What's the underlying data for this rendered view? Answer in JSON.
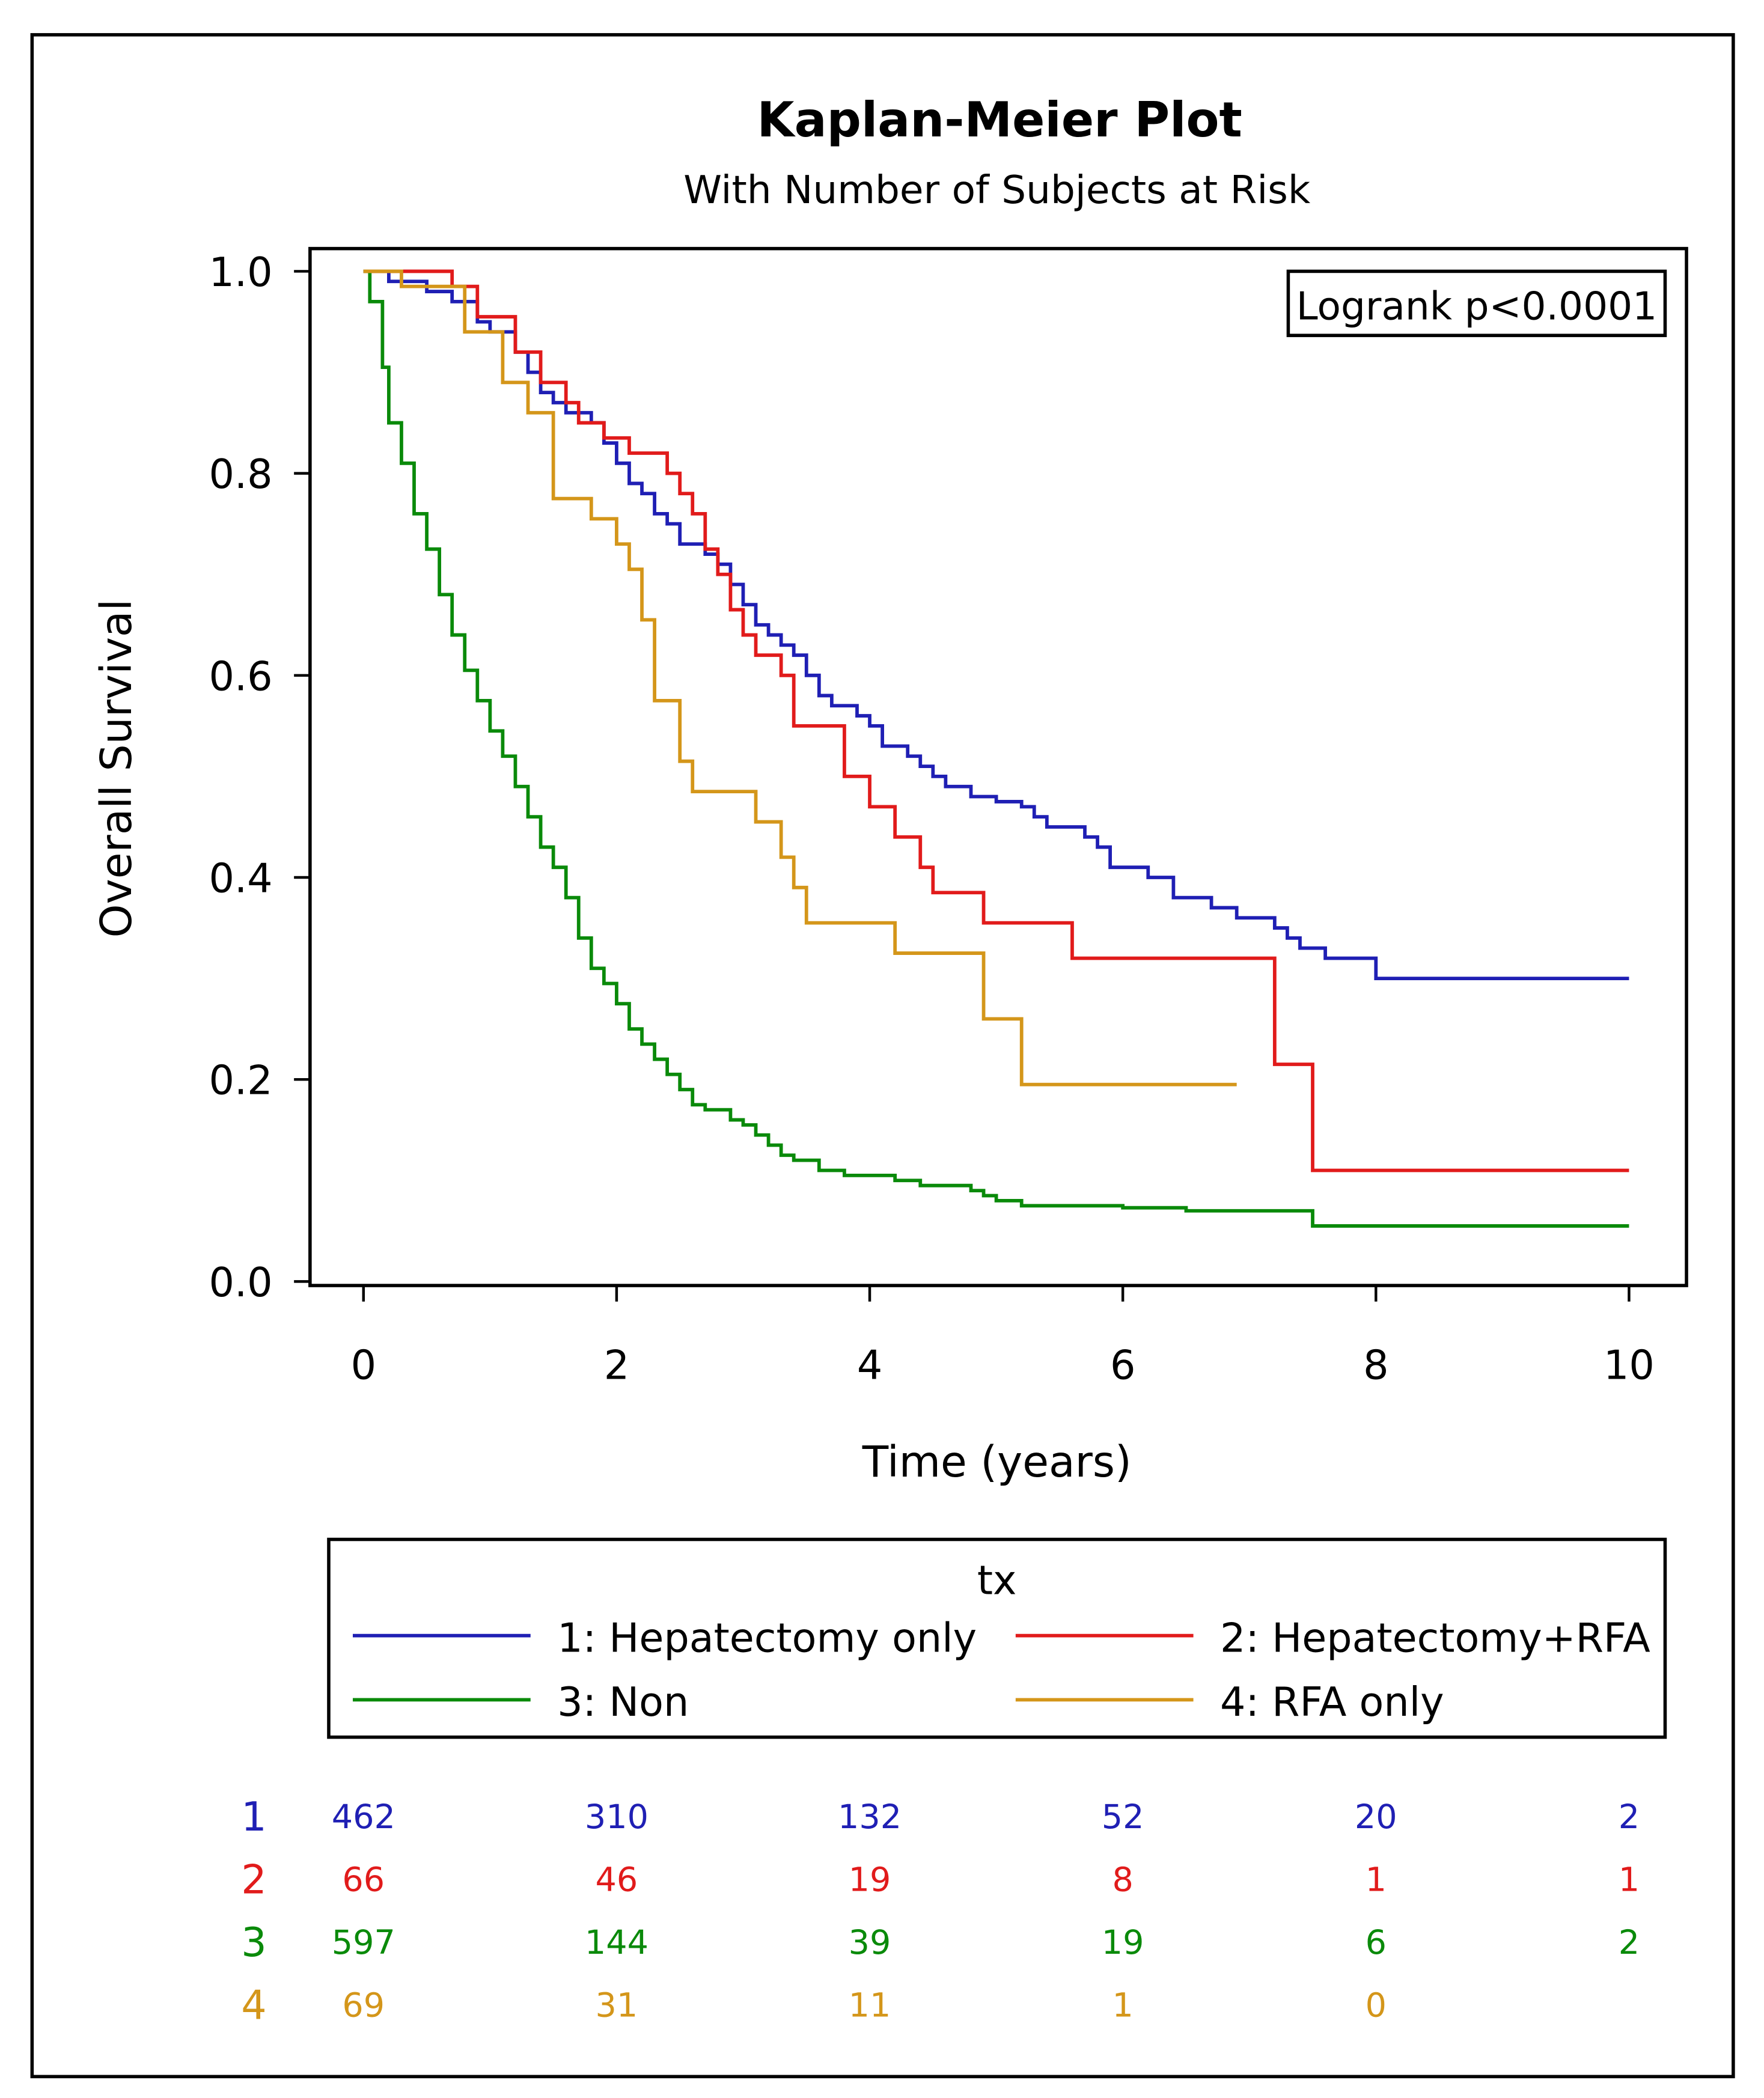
{
  "chart_data": {
    "type": "line",
    "title": "Kaplan-Meier Plot",
    "subtitle": "With Number of Subjects at Risk",
    "xlabel": "Time (years)",
    "ylabel": "Overall Survival",
    "xlim": [
      0,
      10
    ],
    "ylim": [
      0,
      1
    ],
    "xticks": [
      "0",
      "2",
      "4",
      "6",
      "8",
      "10"
    ],
    "yticks": [
      "0.0",
      "0.2",
      "0.4",
      "0.6",
      "0.8",
      "1.0"
    ],
    "annotation": "Logrank p<0.0001",
    "legend": {
      "title": "tx",
      "placement": "bottom",
      "entries": [
        "1: Hepatectomy only",
        "2: Hepatectomy+RFA",
        "3: Non",
        "4: RFA only"
      ]
    },
    "series": [
      {
        "name": "1: Hepatectomy only",
        "id": "1",
        "color": "#1f1fb4",
        "end": 10,
        "steps": [
          [
            0,
            1.0
          ],
          [
            0.2,
            0.99
          ],
          [
            0.5,
            0.98
          ],
          [
            0.7,
            0.97
          ],
          [
            0.9,
            0.95
          ],
          [
            1.0,
            0.94
          ],
          [
            1.2,
            0.92
          ],
          [
            1.3,
            0.9
          ],
          [
            1.4,
            0.88
          ],
          [
            1.5,
            0.87
          ],
          [
            1.6,
            0.86
          ],
          [
            1.8,
            0.85
          ],
          [
            1.9,
            0.83
          ],
          [
            2.0,
            0.81
          ],
          [
            2.1,
            0.79
          ],
          [
            2.2,
            0.78
          ],
          [
            2.3,
            0.76
          ],
          [
            2.4,
            0.75
          ],
          [
            2.5,
            0.73
          ],
          [
            2.7,
            0.72
          ],
          [
            2.8,
            0.71
          ],
          [
            2.9,
            0.69
          ],
          [
            3.0,
            0.67
          ],
          [
            3.1,
            0.65
          ],
          [
            3.2,
            0.64
          ],
          [
            3.3,
            0.63
          ],
          [
            3.4,
            0.62
          ],
          [
            3.5,
            0.6
          ],
          [
            3.6,
            0.58
          ],
          [
            3.7,
            0.57
          ],
          [
            3.9,
            0.56
          ],
          [
            4.0,
            0.55
          ],
          [
            4.1,
            0.53
          ],
          [
            4.3,
            0.52
          ],
          [
            4.4,
            0.51
          ],
          [
            4.5,
            0.5
          ],
          [
            4.6,
            0.49
          ],
          [
            4.8,
            0.48
          ],
          [
            5.0,
            0.475
          ],
          [
            5.2,
            0.47
          ],
          [
            5.3,
            0.46
          ],
          [
            5.4,
            0.45
          ],
          [
            5.7,
            0.44
          ],
          [
            5.8,
            0.43
          ],
          [
            5.9,
            0.41
          ],
          [
            6.2,
            0.4
          ],
          [
            6.4,
            0.38
          ],
          [
            6.7,
            0.37
          ],
          [
            6.9,
            0.36
          ],
          [
            7.2,
            0.35
          ],
          [
            7.3,
            0.34
          ],
          [
            7.4,
            0.33
          ],
          [
            7.6,
            0.32
          ],
          [
            8.0,
            0.3
          ]
        ]
      },
      {
        "name": "2: Hepatectomy+RFA",
        "id": "2",
        "color": "#e11b1b",
        "end": 10,
        "steps": [
          [
            0,
            1.0
          ],
          [
            0.7,
            0.985
          ],
          [
            0.9,
            0.955
          ],
          [
            1.2,
            0.92
          ],
          [
            1.4,
            0.89
          ],
          [
            1.6,
            0.87
          ],
          [
            1.7,
            0.85
          ],
          [
            1.9,
            0.835
          ],
          [
            2.1,
            0.82
          ],
          [
            2.4,
            0.8
          ],
          [
            2.5,
            0.78
          ],
          [
            2.6,
            0.76
          ],
          [
            2.7,
            0.725
          ],
          [
            2.8,
            0.7
          ],
          [
            2.9,
            0.665
          ],
          [
            3.0,
            0.64
          ],
          [
            3.1,
            0.62
          ],
          [
            3.3,
            0.6
          ],
          [
            3.4,
            0.55
          ],
          [
            3.8,
            0.5
          ],
          [
            4.0,
            0.47
          ],
          [
            4.2,
            0.44
          ],
          [
            4.4,
            0.41
          ],
          [
            4.5,
            0.385
          ],
          [
            4.9,
            0.355
          ],
          [
            5.6,
            0.32
          ],
          [
            7.2,
            0.215
          ],
          [
            7.5,
            0.11
          ]
        ]
      },
      {
        "name": "3: Non",
        "id": "3",
        "color": "#0a8a0a",
        "end": 10,
        "steps": [
          [
            0,
            1.0
          ],
          [
            0.05,
            0.97
          ],
          [
            0.15,
            0.905
          ],
          [
            0.2,
            0.85
          ],
          [
            0.3,
            0.81
          ],
          [
            0.4,
            0.76
          ],
          [
            0.5,
            0.725
          ],
          [
            0.6,
            0.68
          ],
          [
            0.7,
            0.64
          ],
          [
            0.8,
            0.605
          ],
          [
            0.9,
            0.575
          ],
          [
            1.0,
            0.545
          ],
          [
            1.1,
            0.52
          ],
          [
            1.2,
            0.49
          ],
          [
            1.3,
            0.46
          ],
          [
            1.4,
            0.43
          ],
          [
            1.5,
            0.41
          ],
          [
            1.6,
            0.38
          ],
          [
            1.7,
            0.34
          ],
          [
            1.8,
            0.31
          ],
          [
            1.9,
            0.295
          ],
          [
            2.0,
            0.275
          ],
          [
            2.1,
            0.25
          ],
          [
            2.2,
            0.235
          ],
          [
            2.3,
            0.22
          ],
          [
            2.4,
            0.205
          ],
          [
            2.5,
            0.19
          ],
          [
            2.6,
            0.175
          ],
          [
            2.7,
            0.17
          ],
          [
            2.9,
            0.16
          ],
          [
            3.0,
            0.155
          ],
          [
            3.1,
            0.145
          ],
          [
            3.2,
            0.135
          ],
          [
            3.3,
            0.125
          ],
          [
            3.4,
            0.12
          ],
          [
            3.6,
            0.11
          ],
          [
            3.8,
            0.105
          ],
          [
            4.2,
            0.1
          ],
          [
            4.4,
            0.095
          ],
          [
            4.8,
            0.09
          ],
          [
            4.9,
            0.085
          ],
          [
            5.0,
            0.08
          ],
          [
            5.2,
            0.075
          ],
          [
            6.0,
            0.073
          ],
          [
            6.5,
            0.07
          ],
          [
            7.5,
            0.055
          ]
        ]
      },
      {
        "name": "4: RFA only",
        "id": "4",
        "color": "#d4961a",
        "end": 6.9,
        "steps": [
          [
            0,
            1.0
          ],
          [
            0.3,
            0.985
          ],
          [
            0.8,
            0.94
          ],
          [
            1.1,
            0.89
          ],
          [
            1.3,
            0.86
          ],
          [
            1.5,
            0.775
          ],
          [
            1.8,
            0.755
          ],
          [
            2.0,
            0.73
          ],
          [
            2.1,
            0.705
          ],
          [
            2.2,
            0.655
          ],
          [
            2.3,
            0.575
          ],
          [
            2.5,
            0.515
          ],
          [
            2.6,
            0.485
          ],
          [
            3.1,
            0.455
          ],
          [
            3.3,
            0.42
          ],
          [
            3.4,
            0.39
          ],
          [
            3.5,
            0.355
          ],
          [
            4.2,
            0.325
          ],
          [
            4.9,
            0.26
          ],
          [
            5.2,
            0.195
          ]
        ]
      }
    ],
    "at_risk": {
      "times": [
        0,
        2,
        4,
        6,
        8,
        10
      ],
      "rows": [
        {
          "id": "1",
          "values": [
            "462",
            "310",
            "132",
            "52",
            "20",
            "2"
          ]
        },
        {
          "id": "2",
          "values": [
            "66",
            "46",
            "19",
            "8",
            "1",
            "1"
          ]
        },
        {
          "id": "3",
          "values": [
            "597",
            "144",
            "39",
            "19",
            "6",
            "2"
          ]
        },
        {
          "id": "4",
          "values": [
            "69",
            "31",
            "11",
            "1",
            "0",
            ""
          ]
        }
      ]
    }
  }
}
